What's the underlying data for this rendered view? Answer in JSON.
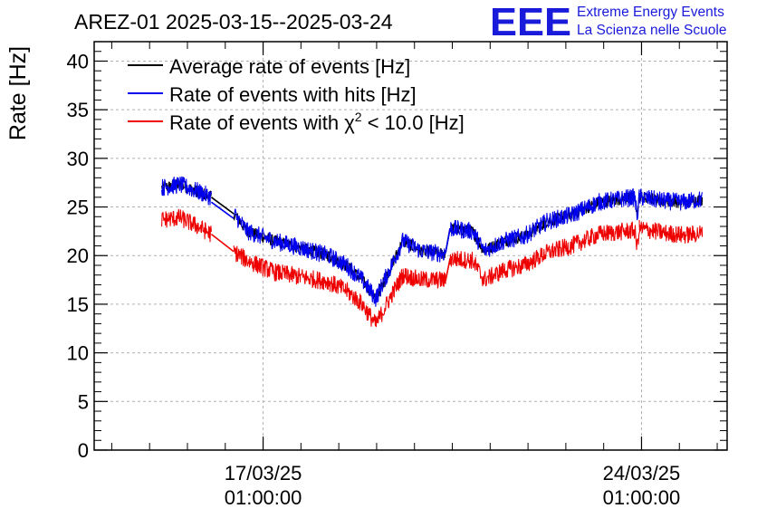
{
  "chart_data": {
    "type": "line",
    "title": "AREZ-01 2025-03-15--2025-03-24",
    "ylabel": "Rate [Hz]",
    "xlabel": "",
    "ylim": [
      0,
      42
    ],
    "yticks": [
      0,
      5,
      10,
      15,
      20,
      25,
      30,
      35,
      40
    ],
    "xlim": [
      "2025-03-13 22:00",
      "2025-03-25 15:00"
    ],
    "xticks": [
      {
        "date": "2025-03-17 01:00",
        "line1": "17/03/25",
        "line2": "01:00:00"
      },
      {
        "date": "2025-03-24 01:00",
        "line1": "24/03/25",
        "line2": "01:00:00"
      }
    ],
    "grid": true,
    "legend_position": "top-left",
    "logo": {
      "mark": "EEE",
      "line1": "Extreme Energy Events",
      "line2": "La Scienza nelle Scuole",
      "color": "#1a1adb"
    },
    "legend": [
      {
        "label": "Average rate of events [Hz]",
        "color": "#000000"
      },
      {
        "label": "Rate of events with hits [Hz]",
        "color": "#0000ee"
      },
      {
        "label_prefix": "Rate of events with ",
        "label_symbol": "χ",
        "label_sup": "2",
        "label_suffix": " < 10.0 [Hz]",
        "color": "#ee0000"
      }
    ],
    "series": [
      {
        "color": "#000000",
        "noise": 0.6,
        "segments": [
          [
            [
              "2025-03-15 04:00",
              27.0
            ],
            [
              "2025-03-15 12:00",
              27.3
            ],
            [
              "2025-03-15 20:00",
              26.6
            ],
            [
              "2025-03-16 02:00",
              26.0
            ]
          ],
          [
            [
              "2025-03-16 02:00",
              26.0
            ],
            [
              "2025-03-16 12:00",
              24.3
            ]
          ],
          [
            [
              "2025-03-16 12:00",
              24.3
            ],
            [
              "2025-03-16 18:00",
              22.5
            ],
            [
              "2025-03-17 06:00",
              21.5
            ],
            [
              "2025-03-17 18:00",
              20.8
            ],
            [
              "2025-03-18 06:00",
              20.0
            ],
            [
              "2025-03-18 14:00",
              19.0
            ],
            [
              "2025-03-18 21:00",
              17.5
            ],
            [
              "2025-03-19 03:00",
              15.6
            ],
            [
              "2025-03-19 09:00",
              18.5
            ],
            [
              "2025-03-19 15:00",
              21.5
            ],
            [
              "2025-03-19 23:00",
              20.5
            ],
            [
              "2025-03-20 08:00",
              20.2
            ],
            [
              "2025-03-20 10:00",
              20.3
            ]
          ],
          [
            [
              "2025-03-20 10:00",
              20.3
            ],
            [
              "2025-03-20 12:00",
              22.8
            ]
          ],
          [
            [
              "2025-03-20 12:00",
              22.8
            ],
            [
              "2025-03-20 22:00",
              22.5
            ],
            [
              "2025-03-21 03:00",
              20.5
            ],
            [
              "2025-03-21 12:00",
              21.5
            ],
            [
              "2025-03-21 21:00",
              22.0
            ],
            [
              "2025-03-22 07:00",
              23.5
            ],
            [
              "2025-03-22 18:00",
              24.2
            ],
            [
              "2025-03-23 06:00",
              25.5
            ],
            [
              "2025-03-23 18:00",
              25.9
            ],
            [
              "2025-03-23 22:00",
              26.0
            ]
          ],
          [
            [
              "2025-03-23 22:00",
              26.0
            ],
            [
              "2025-03-23 23:00",
              24.0
            ],
            [
              "2025-03-24 00:00",
              26.0
            ]
          ],
          [
            [
              "2025-03-24 00:00",
              26.0
            ],
            [
              "2025-03-24 12:00",
              25.6
            ],
            [
              "2025-03-24 20:00",
              25.5
            ],
            [
              "2025-03-25 04:00",
              25.8
            ]
          ]
        ]
      },
      {
        "color": "#0000ee",
        "noise": 0.9,
        "segments": [
          [
            [
              "2025-03-15 04:00",
              27.0
            ],
            [
              "2025-03-15 12:00",
              27.3
            ],
            [
              "2025-03-15 20:00",
              26.6
            ],
            [
              "2025-03-16 02:00",
              26.0
            ]
          ],
          [
            [
              "2025-03-16 02:00",
              25.5
            ],
            [
              "2025-03-16 12:00",
              23.8
            ]
          ],
          [
            [
              "2025-03-16 12:00",
              24.3
            ],
            [
              "2025-03-16 18:00",
              22.5
            ],
            [
              "2025-03-17 06:00",
              21.5
            ],
            [
              "2025-03-17 18:00",
              20.8
            ],
            [
              "2025-03-18 06:00",
              20.0
            ],
            [
              "2025-03-18 14:00",
              19.0
            ],
            [
              "2025-03-18 21:00",
              17.5
            ],
            [
              "2025-03-19 03:00",
              15.6
            ],
            [
              "2025-03-19 09:00",
              18.5
            ],
            [
              "2025-03-19 15:00",
              21.5
            ],
            [
              "2025-03-19 23:00",
              20.5
            ],
            [
              "2025-03-20 08:00",
              20.2
            ],
            [
              "2025-03-20 10:00",
              20.3
            ]
          ],
          [
            [
              "2025-03-20 10:00",
              20.3
            ],
            [
              "2025-03-20 12:00",
              22.8
            ]
          ],
          [
            [
              "2025-03-20 12:00",
              22.8
            ],
            [
              "2025-03-20 22:00",
              22.5
            ],
            [
              "2025-03-21 03:00",
              20.5
            ],
            [
              "2025-03-21 12:00",
              21.5
            ],
            [
              "2025-03-21 21:00",
              22.0
            ],
            [
              "2025-03-22 07:00",
              23.5
            ],
            [
              "2025-03-22 18:00",
              24.2
            ],
            [
              "2025-03-23 06:00",
              25.5
            ],
            [
              "2025-03-23 18:00",
              25.9
            ],
            [
              "2025-03-23 22:00",
              26.0
            ]
          ],
          [
            [
              "2025-03-23 22:00",
              26.0
            ],
            [
              "2025-03-23 23:00",
              24.0
            ],
            [
              "2025-03-24 00:00",
              26.0
            ]
          ],
          [
            [
              "2025-03-24 00:00",
              26.0
            ],
            [
              "2025-03-24 12:00",
              25.6
            ],
            [
              "2025-03-24 20:00",
              25.5
            ],
            [
              "2025-03-25 04:00",
              25.8
            ]
          ]
        ]
      },
      {
        "color": "#ee0000",
        "noise": 0.9,
        "segments": [
          [
            [
              "2025-03-15 04:00",
              23.7
            ],
            [
              "2025-03-15 12:00",
              23.9
            ],
            [
              "2025-03-15 20:00",
              23.0
            ],
            [
              "2025-03-16 02:00",
              22.2
            ]
          ],
          [
            [
              "2025-03-16 02:00",
              22.2
            ],
            [
              "2025-03-16 12:00",
              20.4
            ]
          ],
          [
            [
              "2025-03-16 12:00",
              20.4
            ],
            [
              "2025-03-16 18:00",
              19.5
            ],
            [
              "2025-03-17 06:00",
              18.3
            ],
            [
              "2025-03-17 18:00",
              17.8
            ],
            [
              "2025-03-18 06:00",
              17.3
            ],
            [
              "2025-03-18 14:00",
              16.4
            ],
            [
              "2025-03-18 21:00",
              15.0
            ],
            [
              "2025-03-19 03:00",
              12.9
            ],
            [
              "2025-03-19 09:00",
              15.5
            ],
            [
              "2025-03-19 15:00",
              18.0
            ],
            [
              "2025-03-19 23:00",
              17.5
            ],
            [
              "2025-03-20 08:00",
              17.5
            ],
            [
              "2025-03-20 10:00",
              17.4
            ]
          ],
          [
            [
              "2025-03-20 10:00",
              17.4
            ],
            [
              "2025-03-20 12:00",
              19.7
            ]
          ],
          [
            [
              "2025-03-20 12:00",
              19.7
            ],
            [
              "2025-03-20 22:00",
              19.5
            ],
            [
              "2025-03-21 03:00",
              17.5
            ],
            [
              "2025-03-21 12:00",
              18.5
            ],
            [
              "2025-03-21 21:00",
              19.0
            ],
            [
              "2025-03-22 07:00",
              20.3
            ],
            [
              "2025-03-22 18:00",
              21.0
            ],
            [
              "2025-03-23 06:00",
              22.2
            ],
            [
              "2025-03-23 18:00",
              22.5
            ],
            [
              "2025-03-23 22:00",
              22.6
            ]
          ],
          [
            [
              "2025-03-23 22:00",
              22.6
            ],
            [
              "2025-03-23 23:00",
              20.8
            ],
            [
              "2025-03-24 00:00",
              22.8
            ]
          ],
          [
            [
              "2025-03-24 00:00",
              22.8
            ],
            [
              "2025-03-24 12:00",
              22.3
            ],
            [
              "2025-03-24 20:00",
              22.1
            ],
            [
              "2025-03-25 04:00",
              22.3
            ]
          ]
        ]
      }
    ]
  }
}
